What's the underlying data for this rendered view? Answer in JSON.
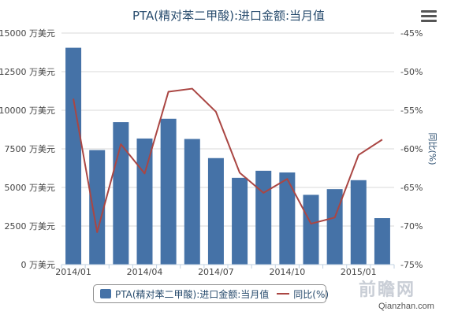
{
  "chart_data": {
    "type": "bar",
    "title": "PTA(精对苯二甲酸):进口金额:当月值",
    "categories": [
      "2014/01",
      "2014/02",
      "2014/03",
      "2014/04",
      "2014/05",
      "2014/06",
      "2014/07",
      "2014/08",
      "2014/09",
      "2014/10",
      "2014/11",
      "2014/12",
      "2015/01",
      "2015/02"
    ],
    "x_tick_labels": [
      {
        "category": "2014/01",
        "label": "2014/01"
      },
      {
        "category": "2014/04",
        "label": "2014/04"
      },
      {
        "category": "2014/07",
        "label": "2014/07"
      },
      {
        "category": "2014/10",
        "label": "2014/10"
      },
      {
        "category": "2015/01",
        "label": "2015/01"
      }
    ],
    "series": [
      {
        "name": "PTA(精对苯二甲酸):进口金额:当月值",
        "type": "bar",
        "axis": "left",
        "color": "#4572a7",
        "values": [
          14050,
          7420,
          9230,
          8170,
          9450,
          8140,
          6900,
          5620,
          6080,
          5970,
          4520,
          4890,
          5470,
          3010
        ]
      },
      {
        "name": "同比(%)",
        "type": "line",
        "axis": "right",
        "color": "#aa4643",
        "values": [
          -53.5,
          -70.8,
          -59.4,
          -63.2,
          -52.6,
          -52.2,
          -55.2,
          -63.1,
          -65.7,
          -63.9,
          -69.7,
          -68.9,
          -60.8,
          -58.8
        ]
      }
    ],
    "y_left": {
      "min": 0,
      "max": 15000,
      "step": 2500,
      "tick_suffix": " 万美元"
    },
    "y_right": {
      "min": -75,
      "max": -45,
      "step": 5,
      "tick_suffix": "%",
      "title": "同比(%)"
    },
    "grid": true,
    "legend_position": "bottom-center"
  },
  "ui": {
    "menu_icon": "hamburger-menu-icon"
  },
  "watermark": {
    "logo": "前瞻网",
    "url": "Qianzhan.com"
  }
}
